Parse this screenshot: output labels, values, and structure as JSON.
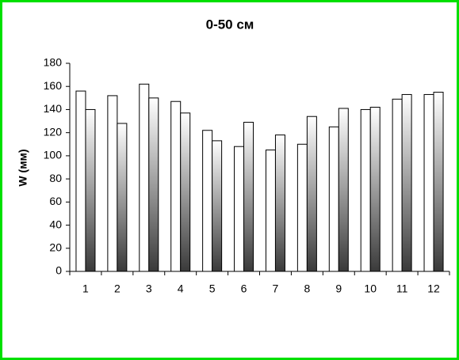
{
  "chart_data": {
    "type": "bar",
    "title": "0-50 см",
    "y_label": "W (мм)",
    "categories": [
      "1",
      "2",
      "3",
      "4",
      "5",
      "6",
      "7",
      "8",
      "9",
      "10",
      "11",
      "12"
    ],
    "series": [
      {
        "color": "#ffffff",
        "values": [
          156,
          152,
          162,
          147,
          122,
          108,
          105,
          110,
          125,
          140,
          149,
          153
        ]
      },
      {
        "color": "#3a3a3a",
        "values": [
          140,
          128,
          150,
          137,
          113,
          129,
          118,
          134,
          141,
          142,
          153,
          155
        ]
      }
    ],
    "ylim": [
      0,
      180
    ],
    "yticks": [
      0,
      20,
      40,
      60,
      80,
      100,
      120,
      140,
      160,
      180
    ],
    "grid": false
  }
}
